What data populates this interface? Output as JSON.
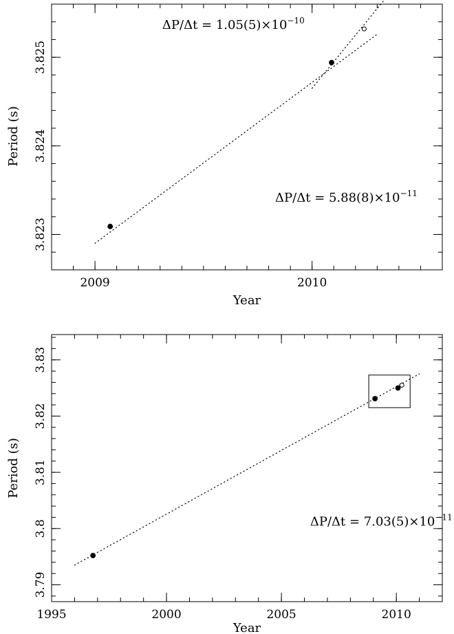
{
  "chart_data": [
    {
      "type": "scatter",
      "xlabel": "Year",
      "ylabel": "Period (s)",
      "xlim": [
        2008.8,
        2010.6
      ],
      "ylim": [
        3.8226,
        3.8256
      ],
      "x_ticks": [
        {
          "value": 2009,
          "label": "2009"
        },
        {
          "value": 2010,
          "label": "2010"
        }
      ],
      "x_minor_step": 0.1,
      "y_ticks": [
        {
          "value": 3.823,
          "label": "3.823"
        },
        {
          "value": 3.824,
          "label": "3.824"
        },
        {
          "value": 3.825,
          "label": "3.825"
        }
      ],
      "y_minor_step": 0.0002,
      "points": [
        {
          "x": 2009.07,
          "y": 3.82309,
          "filled": true
        },
        {
          "x": 2010.09,
          "y": 3.82494,
          "filled": true
        },
        {
          "x": 2010.24,
          "y": 3.82532,
          "filled": false
        }
      ],
      "fit_lines": [
        {
          "x": [
            2009.0,
            2010.3
          ],
          "y": [
            3.8229,
            3.82526
          ]
        },
        {
          "x": [
            2010.0,
            2010.33
          ],
          "y": [
            3.82465,
            3.82564
          ]
        }
      ],
      "annotations": [
        {
          "base": "ΔP/Δt  =  1.05(5)×10",
          "exp": "−10",
          "x": 2009.31,
          "y": 3.82532
        },
        {
          "base": "ΔP/Δt  =  5.88(8)×10",
          "exp": "−11",
          "x": 2009.83,
          "y": 3.82337
        }
      ]
    },
    {
      "type": "scatter",
      "xlabel": "Year",
      "ylabel": "Period (s)",
      "xlim": [
        1995,
        2012
      ],
      "ylim": [
        3.787,
        3.8345
      ],
      "x_ticks": [
        {
          "value": 1995,
          "label": "1995"
        },
        {
          "value": 2000,
          "label": "2000"
        },
        {
          "value": 2005,
          "label": "2005"
        },
        {
          "value": 2010,
          "label": "2010"
        }
      ],
      "x_minor_step": 1,
      "y_ticks": [
        {
          "value": 3.79,
          "label": "3.79"
        },
        {
          "value": 3.8,
          "label": "3.8"
        },
        {
          "value": 3.81,
          "label": "3.81"
        },
        {
          "value": 3.82,
          "label": "3.82"
        },
        {
          "value": 3.83,
          "label": "3.83"
        }
      ],
      "y_minor_step": 0.002,
      "points": [
        {
          "x": 1996.8,
          "y": 3.7952,
          "filled": true
        },
        {
          "x": 2009.07,
          "y": 3.8231,
          "filled": true
        },
        {
          "x": 2010.07,
          "y": 3.825,
          "filled": true
        },
        {
          "x": 2010.24,
          "y": 3.8255,
          "filled": false
        }
      ],
      "fit_lines": [
        {
          "x": [
            1996.0,
            2011.0
          ],
          "y": [
            3.7935,
            3.8275
          ]
        }
      ],
      "inset_box": {
        "x": [
          2008.8,
          2010.6
        ],
        "y": [
          3.8215,
          3.8273
        ]
      },
      "annotations": [
        {
          "base": "ΔP/Δt  =  7.03(5)×10",
          "exp": "−11",
          "x": 2006.25,
          "y": 3.8005
        }
      ]
    }
  ]
}
